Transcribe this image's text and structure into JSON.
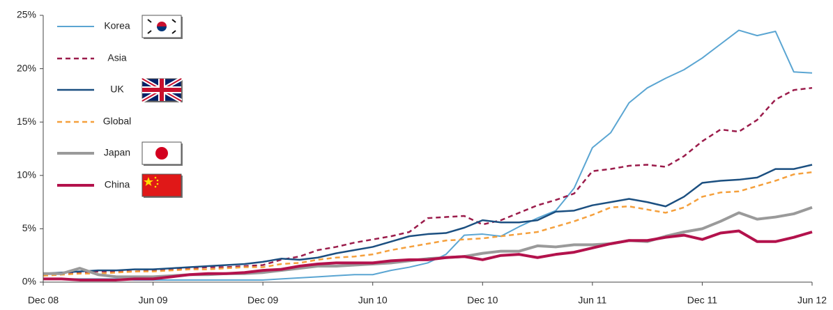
{
  "chart_data": {
    "type": "line",
    "categories": [
      "Dec 08",
      null,
      null,
      null,
      null,
      null,
      "Jun 09",
      null,
      null,
      null,
      null,
      null,
      "Dec 09",
      null,
      null,
      null,
      null,
      null,
      "Jun 10",
      null,
      null,
      null,
      null,
      null,
      "Dec 10",
      null,
      null,
      null,
      null,
      null,
      "Jun 11",
      null,
      null,
      null,
      null,
      null,
      "Dec 11",
      null,
      null,
      null,
      null,
      null,
      "Jun 12"
    ],
    "ylim": [
      0,
      25
    ],
    "yticks": [
      {
        "value": 0,
        "label": "0%"
      },
      {
        "value": 5,
        "label": "5%"
      },
      {
        "value": 10,
        "label": "10%"
      },
      {
        "value": 15,
        "label": "15%"
      },
      {
        "value": 20,
        "label": "20%"
      },
      {
        "value": 25,
        "label": "25%"
      }
    ],
    "legend": "upper left",
    "series": [
      {
        "name": "Korea",
        "color": "#5aa5d2",
        "dashed": false,
        "line_width": 2,
        "values": [
          0.3,
          0.3,
          0.3,
          0.3,
          0.3,
          0.2,
          0.2,
          0.2,
          0.2,
          0.2,
          0.2,
          0.2,
          0.2,
          0.3,
          0.4,
          0.5,
          0.6,
          0.7,
          0.7,
          1.1,
          1.4,
          1.8,
          2.6,
          4.4,
          4.5,
          4.3,
          5.2,
          6.0,
          6.7,
          8.8,
          12.6,
          14.0,
          16.8,
          18.2,
          19.1,
          19.9,
          21.0,
          22.3,
          23.6,
          23.1,
          23.5,
          19.7,
          19.6
        ]
      },
      {
        "name": "Asia",
        "color": "#9b1c4b",
        "dashed": true,
        "line_width": 2.5,
        "values": [
          0.8,
          0.8,
          0.9,
          1.0,
          1.0,
          1.0,
          1.1,
          1.2,
          1.3,
          1.4,
          1.4,
          1.5,
          1.6,
          2.1,
          2.4,
          3.0,
          3.3,
          3.7,
          4.0,
          4.3,
          4.7,
          6.0,
          6.1,
          6.2,
          5.4,
          5.8,
          6.5,
          7.2,
          7.7,
          8.3,
          10.4,
          10.6,
          10.9,
          11.0,
          10.8,
          11.8,
          13.2,
          14.3,
          14.1,
          15.2,
          17.1,
          18.0,
          18.2
        ]
      },
      {
        "name": "UK",
        "color": "#1b4f80",
        "dashed": false,
        "line_width": 2.5,
        "values": [
          0.8,
          0.9,
          1.0,
          1.1,
          1.1,
          1.2,
          1.2,
          1.3,
          1.4,
          1.5,
          1.6,
          1.7,
          1.9,
          2.2,
          2.1,
          2.3,
          2.7,
          3.0,
          3.3,
          3.8,
          4.3,
          4.5,
          4.6,
          5.1,
          5.8,
          5.6,
          5.6,
          5.8,
          6.6,
          6.7,
          7.2,
          7.5,
          7.8,
          7.5,
          7.1,
          8.0,
          9.3,
          9.5,
          9.6,
          9.8,
          10.6,
          10.6,
          11.0
        ]
      },
      {
        "name": "Global",
        "color": "#f5a03c",
        "dashed": true,
        "line_width": 2.5,
        "values": [
          0.6,
          0.7,
          0.8,
          0.8,
          0.9,
          1.0,
          1.0,
          1.1,
          1.2,
          1.2,
          1.3,
          1.4,
          1.4,
          1.7,
          1.8,
          2.1,
          2.3,
          2.4,
          2.6,
          3.0,
          3.3,
          3.6,
          3.9,
          4.0,
          4.1,
          4.3,
          4.5,
          4.7,
          5.2,
          5.7,
          6.3,
          7.0,
          7.1,
          6.8,
          6.5,
          7.0,
          8.0,
          8.4,
          8.5,
          9.0,
          9.5,
          10.1,
          10.3
        ]
      },
      {
        "name": "Japan",
        "color": "#9a9a9a",
        "dashed": false,
        "line_width": 4,
        "values": [
          0.8,
          0.8,
          1.3,
          0.7,
          0.5,
          0.5,
          0.5,
          0.6,
          0.7,
          0.7,
          0.8,
          0.8,
          0.9,
          1.1,
          1.3,
          1.5,
          1.5,
          1.6,
          1.7,
          1.8,
          2.0,
          2.2,
          2.3,
          2.4,
          2.7,
          2.9,
          2.9,
          3.4,
          3.3,
          3.5,
          3.5,
          3.6,
          3.9,
          3.8,
          4.3,
          4.7,
          5.0,
          5.7,
          6.5,
          5.9,
          6.1,
          6.4,
          7.0
        ]
      },
      {
        "name": "China",
        "color": "#b3124c",
        "dashed": false,
        "line_width": 4,
        "values": [
          0.3,
          0.3,
          0.2,
          0.2,
          0.2,
          0.3,
          0.3,
          0.5,
          0.7,
          0.8,
          0.8,
          0.9,
          1.1,
          1.2,
          1.5,
          1.7,
          1.8,
          1.8,
          1.8,
          2.0,
          2.1,
          2.1,
          2.3,
          2.4,
          2.1,
          2.5,
          2.6,
          2.3,
          2.6,
          2.8,
          3.2,
          3.6,
          3.9,
          3.9,
          4.2,
          4.4,
          4.0,
          4.6,
          4.8,
          3.8,
          3.8,
          4.2,
          4.7
        ]
      }
    ]
  }
}
